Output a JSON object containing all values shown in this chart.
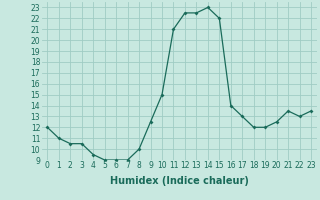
{
  "x": [
    0,
    1,
    2,
    3,
    4,
    5,
    6,
    7,
    8,
    9,
    10,
    11,
    12,
    13,
    14,
    15,
    16,
    17,
    18,
    19,
    20,
    21,
    22,
    23
  ],
  "y": [
    12,
    11,
    10.5,
    10.5,
    9.5,
    9,
    9,
    9,
    10,
    12.5,
    15,
    21,
    22.5,
    22.5,
    23,
    22,
    14,
    13,
    12,
    12,
    12.5,
    13.5,
    13,
    13.5
  ],
  "xlabel": "Humidex (Indice chaleur)",
  "line_color": "#1a6b5a",
  "marker": "D",
  "marker_size": 2.0,
  "bg_color": "#c8e8e0",
  "grid_color": "#a0ccc4",
  "ylim": [
    9,
    23.5
  ],
  "xlim": [
    -0.5,
    23.5
  ],
  "yticks": [
    9,
    10,
    11,
    12,
    13,
    14,
    15,
    16,
    17,
    18,
    19,
    20,
    21,
    22,
    23
  ],
  "xticks": [
    0,
    1,
    2,
    3,
    4,
    5,
    6,
    7,
    8,
    9,
    10,
    11,
    12,
    13,
    14,
    15,
    16,
    17,
    18,
    19,
    20,
    21,
    22,
    23
  ],
  "tick_fontsize": 5.5,
  "xlabel_fontsize": 7
}
